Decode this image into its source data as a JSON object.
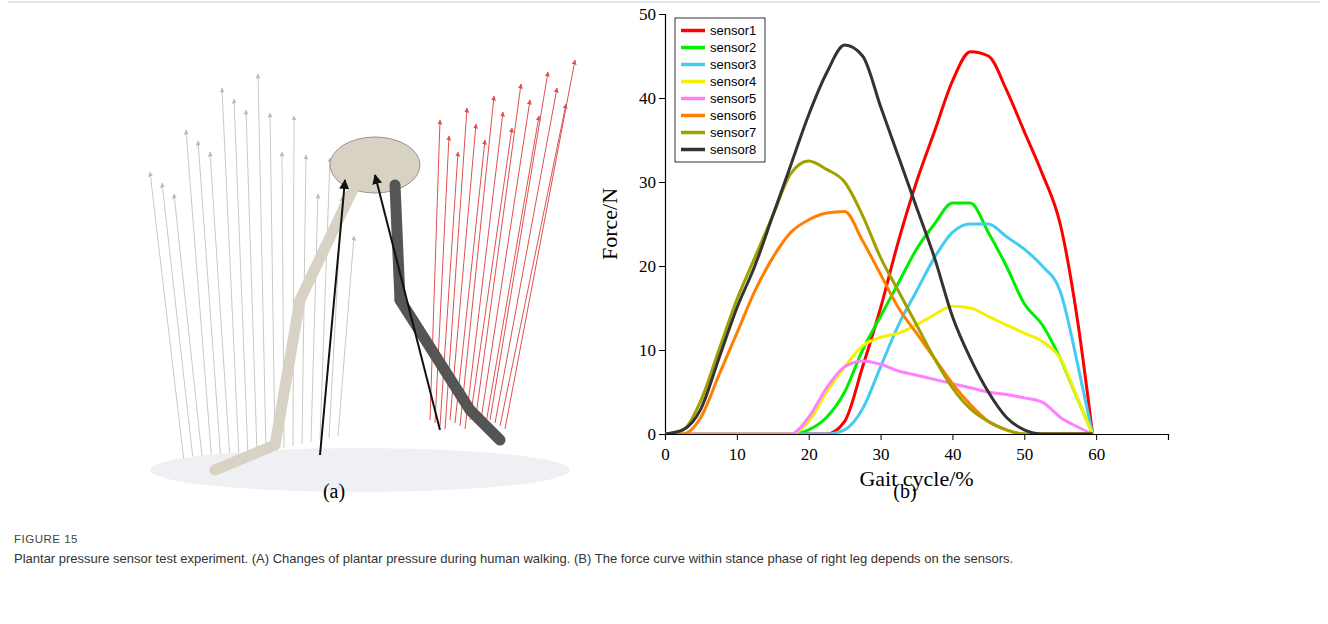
{
  "figure": {
    "label": "FIGURE 15",
    "caption": "Plantar pressure sensor test experiment. (A) Changes of plantar pressure during human walking. (B) The force curve within stance phase of right leg depends on the sensors.",
    "panels": [
      "(a)",
      "(b)"
    ]
  },
  "chart_data": {
    "type": "line",
    "x_label": "Gait cycle/%",
    "y_label": "Force/N",
    "x": [
      0,
      2.5,
      5,
      7.5,
      10,
      12.5,
      15,
      17.5,
      20,
      22.5,
      25,
      27.5,
      30,
      32.5,
      35,
      37.5,
      40,
      42.5,
      45,
      47.5,
      50,
      52.5,
      55,
      57.5,
      59.5
    ],
    "xlim": [
      0,
      70
    ],
    "xticks": [
      0,
      10,
      20,
      30,
      40,
      50,
      60
    ],
    "ylim": [
      0,
      50
    ],
    "yticks": [
      0,
      10,
      20,
      30,
      40,
      50
    ],
    "grid": false,
    "legend": "upper left",
    "series": [
      {
        "name": "sensor1",
        "color": "#ff0000",
        "values": [
          0,
          0,
          0,
          0,
          0,
          0,
          0,
          0,
          0,
          0,
          1.5,
          8,
          15,
          23,
          30,
          36,
          42,
          45.5,
          45,
          41,
          36,
          31,
          25,
          13,
          0
        ]
      },
      {
        "name": "sensor2",
        "color": "#00ee00",
        "values": [
          0,
          0,
          0,
          0,
          0,
          0,
          0,
          0,
          0.5,
          2,
          5,
          10,
          14,
          18,
          22,
          25,
          27.5,
          27.5,
          24,
          20,
          15.5,
          13,
          9,
          4,
          0
        ]
      },
      {
        "name": "sensor3",
        "color": "#44ccf0",
        "values": [
          0,
          0,
          0,
          0,
          0,
          0,
          0,
          0,
          0,
          0,
          0.5,
          3,
          8,
          13,
          17,
          21,
          24,
          25,
          25,
          23.5,
          22,
          20,
          17,
          8,
          0
        ]
      },
      {
        "name": "sensor4",
        "color": "#f5f000",
        "values": [
          0,
          0,
          0,
          0,
          0,
          0,
          0,
          0,
          1.5,
          5,
          8,
          10.5,
          11.5,
          12,
          13,
          14.2,
          15.2,
          15,
          14,
          13,
          12,
          11,
          9,
          4,
          0
        ]
      },
      {
        "name": "sensor5",
        "color": "#ff80ff",
        "values": [
          0,
          0,
          0,
          0,
          0,
          0,
          0,
          0,
          2,
          5.5,
          8,
          8.7,
          8.3,
          7.5,
          7,
          6.5,
          6,
          5.5,
          5,
          4.7,
          4.3,
          3.8,
          2,
          0.8,
          0
        ]
      },
      {
        "name": "sensor6",
        "color": "#ff8000",
        "values": [
          0,
          0,
          2,
          7,
          12,
          17,
          21,
          24,
          25.5,
          26.3,
          26.5,
          23,
          19,
          15,
          12,
          9,
          6,
          3.5,
          1.5,
          0.5,
          0,
          0,
          0,
          0,
          0
        ]
      },
      {
        "name": "sensor7",
        "color": "#a0a000",
        "values": [
          0,
          0.5,
          4,
          10,
          16,
          21,
          26,
          31,
          32.5,
          31.5,
          30,
          26,
          21,
          17,
          13,
          9,
          5.5,
          3,
          1.5,
          0.5,
          0,
          0,
          0,
          0,
          0
        ]
      },
      {
        "name": "sensor8",
        "color": "#333333",
        "values": [
          0,
          0.5,
          3,
          9,
          15,
          20,
          26,
          32,
          38,
          43,
          46.3,
          45,
          39,
          33,
          27,
          21,
          14,
          9,
          5,
          2,
          0.5,
          0,
          0,
          0,
          0
        ]
      }
    ]
  }
}
